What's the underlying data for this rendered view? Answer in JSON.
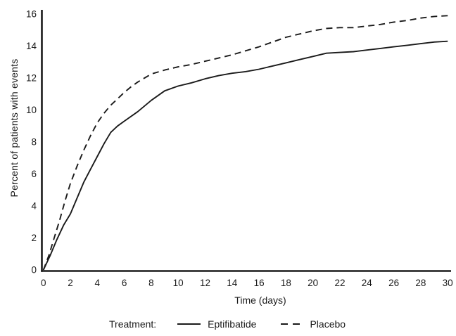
{
  "colors": {
    "background": "#ffffff",
    "line": "#1a1a1a",
    "text": "#1a1a1a"
  },
  "chart_data": {
    "type": "line",
    "title": "",
    "xlabel": "Time (days)",
    "ylabel": "Percent of patients with events",
    "xlim": [
      0,
      30
    ],
    "ylim": [
      0,
      16
    ],
    "x_ticks": [
      0,
      2,
      4,
      6,
      8,
      10,
      12,
      14,
      16,
      18,
      20,
      22,
      24,
      26,
      28,
      30
    ],
    "y_ticks": [
      0,
      2,
      4,
      6,
      8,
      10,
      12,
      14,
      16
    ],
    "grid": false,
    "legend_position": "bottom",
    "legend_title": "Treatment:",
    "series": [
      {
        "name": "Eptifibatide",
        "line_style": "solid",
        "points": [
          [
            0,
            0
          ],
          [
            0.5,
            0.9
          ],
          [
            1,
            1.9
          ],
          [
            1.5,
            2.8
          ],
          [
            2,
            3.5
          ],
          [
            2.5,
            4.5
          ],
          [
            3,
            5.5
          ],
          [
            3.5,
            6.3
          ],
          [
            4,
            7.1
          ],
          [
            4.5,
            7.9
          ],
          [
            5,
            8.6
          ],
          [
            5.5,
            9.0
          ],
          [
            6,
            9.3
          ],
          [
            7,
            9.9
          ],
          [
            8,
            10.6
          ],
          [
            9,
            11.2
          ],
          [
            10,
            11.5
          ],
          [
            11,
            11.7
          ],
          [
            12,
            11.95
          ],
          [
            13,
            12.15
          ],
          [
            14,
            12.3
          ],
          [
            15,
            12.4
          ],
          [
            16,
            12.55
          ],
          [
            17,
            12.75
          ],
          [
            18,
            12.95
          ],
          [
            19,
            13.15
          ],
          [
            20,
            13.35
          ],
          [
            21,
            13.55
          ],
          [
            22,
            13.6
          ],
          [
            23,
            13.65
          ],
          [
            24,
            13.75
          ],
          [
            25,
            13.85
          ],
          [
            26,
            13.95
          ],
          [
            27,
            14.05
          ],
          [
            28,
            14.15
          ],
          [
            29,
            14.25
          ],
          [
            30,
            14.3
          ]
        ]
      },
      {
        "name": "Placebo",
        "line_style": "dashed",
        "points": [
          [
            0,
            0
          ],
          [
            0.4,
            0.9
          ],
          [
            0.8,
            2.0
          ],
          [
            1.2,
            3.1
          ],
          [
            1.6,
            4.3
          ],
          [
            2,
            5.4
          ],
          [
            2.5,
            6.5
          ],
          [
            3,
            7.5
          ],
          [
            3.5,
            8.4
          ],
          [
            4,
            9.2
          ],
          [
            4.5,
            9.8
          ],
          [
            5,
            10.3
          ],
          [
            5.5,
            10.7
          ],
          [
            6,
            11.1
          ],
          [
            6.5,
            11.45
          ],
          [
            7,
            11.75
          ],
          [
            8,
            12.25
          ],
          [
            9,
            12.5
          ],
          [
            10,
            12.7
          ],
          [
            11,
            12.85
          ],
          [
            12,
            13.05
          ],
          [
            13,
            13.25
          ],
          [
            14,
            13.45
          ],
          [
            15,
            13.7
          ],
          [
            16,
            13.95
          ],
          [
            17,
            14.25
          ],
          [
            18,
            14.55
          ],
          [
            19,
            14.75
          ],
          [
            20,
            14.95
          ],
          [
            21,
            15.1
          ],
          [
            22,
            15.15
          ],
          [
            23,
            15.15
          ],
          [
            24,
            15.25
          ],
          [
            25,
            15.35
          ],
          [
            26,
            15.5
          ],
          [
            27,
            15.6
          ],
          [
            28,
            15.75
          ],
          [
            29,
            15.85
          ],
          [
            30,
            15.9
          ]
        ]
      }
    ]
  }
}
